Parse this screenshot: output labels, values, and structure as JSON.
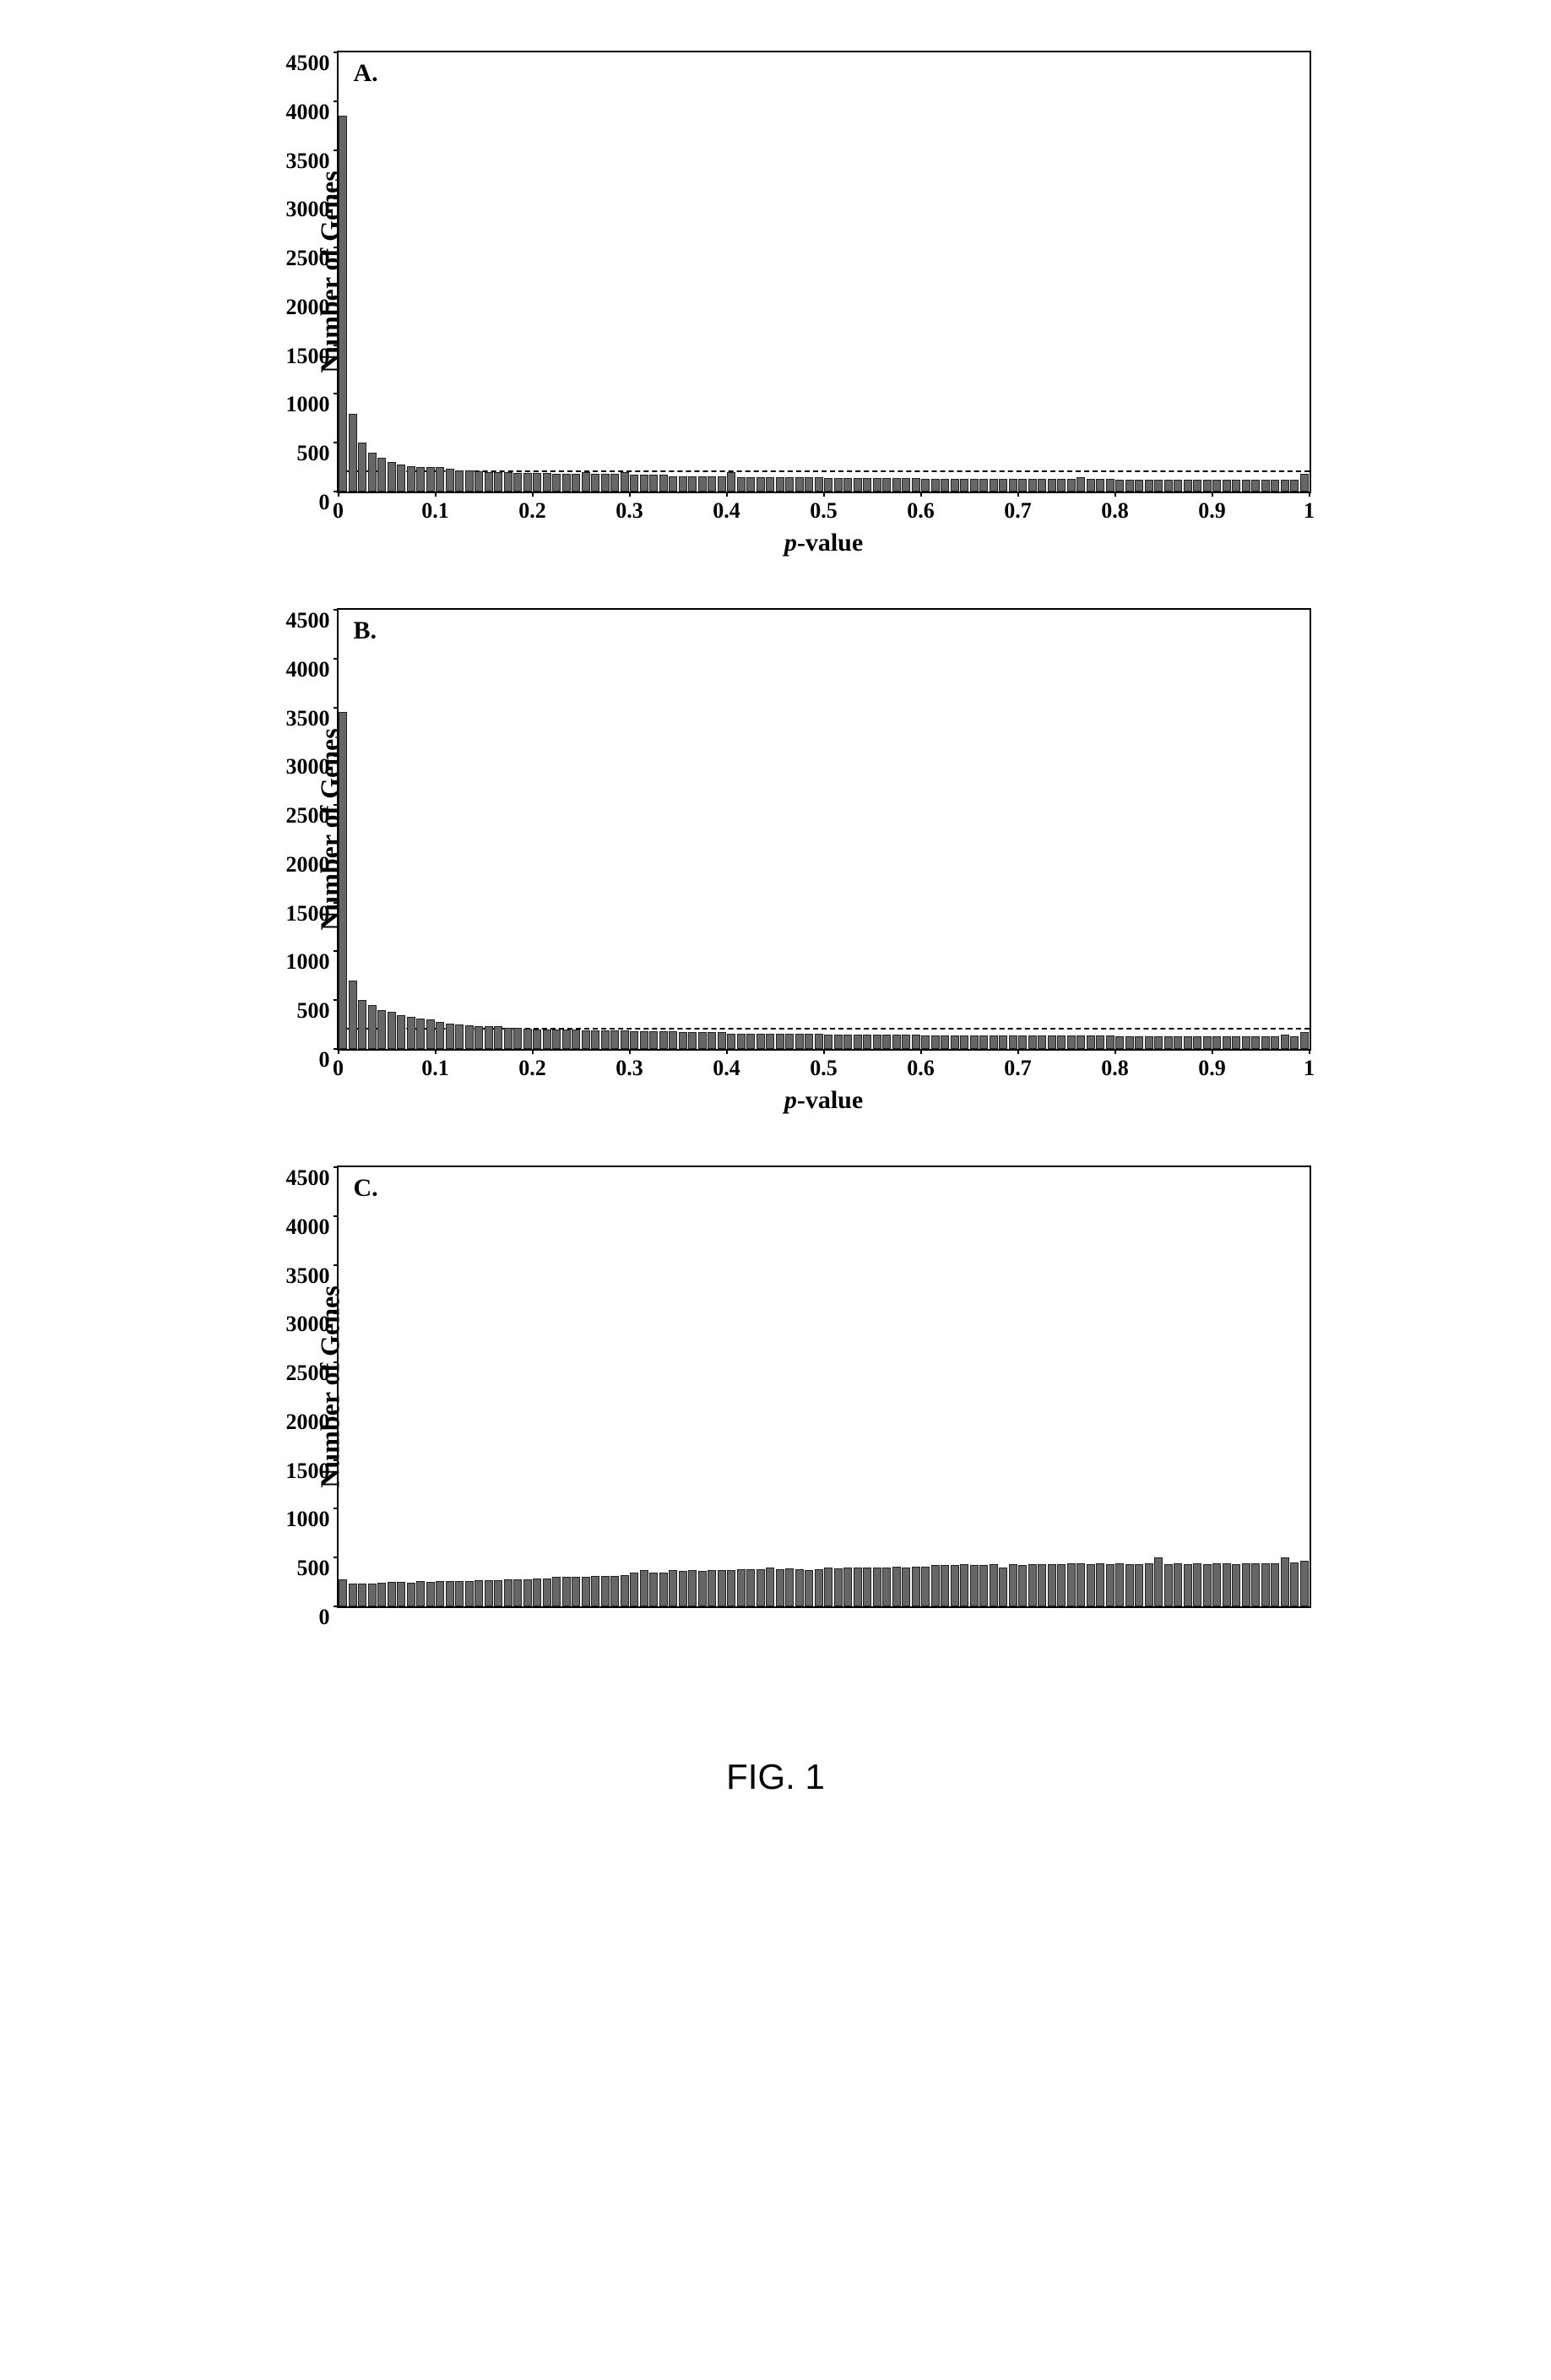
{
  "figure_caption": "FIG. 1",
  "global": {
    "background_color": "#ffffff",
    "bar_fill": "#666666",
    "bar_border": "#222222",
    "axis_color": "#000000",
    "ref_line_color": "#000000",
    "font_family": "Times New Roman",
    "y_label_fontsize": 32,
    "x_label_fontsize": 30,
    "panel_label_fontsize": 30,
    "tick_fontsize": 26
  },
  "panels": [
    {
      "id": "A",
      "panel_label": "A.",
      "y_label": "Number of Genes",
      "x_label": "p-value",
      "show_x_label": true,
      "ylim": [
        0,
        4500
      ],
      "yticks": [
        0,
        500,
        1000,
        1500,
        2000,
        2500,
        3000,
        3500,
        4000,
        4500
      ],
      "xlim": [
        0,
        1
      ],
      "xticks": [
        0,
        0.1,
        0.2,
        0.3,
        0.4,
        0.5,
        0.6,
        0.7,
        0.8,
        0.9,
        1
      ],
      "ref_line_y": 200,
      "bars": [
        3850,
        800,
        500,
        400,
        350,
        300,
        280,
        260,
        250,
        250,
        250,
        230,
        220,
        220,
        210,
        200,
        200,
        200,
        190,
        190,
        190,
        190,
        180,
        180,
        180,
        200,
        180,
        180,
        180,
        200,
        170,
        170,
        170,
        170,
        160,
        160,
        160,
        160,
        160,
        160,
        200,
        150,
        150,
        150,
        150,
        150,
        150,
        150,
        150,
        150,
        140,
        140,
        140,
        140,
        140,
        140,
        140,
        140,
        140,
        140,
        130,
        130,
        130,
        130,
        130,
        130,
        130,
        130,
        130,
        130,
        130,
        130,
        130,
        130,
        130,
        130,
        150,
        130,
        130,
        130,
        120,
        120,
        120,
        120,
        120,
        120,
        120,
        120,
        120,
        120,
        120,
        120,
        120,
        120,
        120,
        120,
        120,
        120,
        120,
        180
      ]
    },
    {
      "id": "B",
      "panel_label": "B.",
      "y_label": "Number of Genes",
      "x_label": "p-value",
      "show_x_label": true,
      "ylim": [
        0,
        4500
      ],
      "yticks": [
        0,
        500,
        1000,
        1500,
        2000,
        2500,
        3000,
        3500,
        4000,
        4500
      ],
      "xlim": [
        0,
        1
      ],
      "xticks": [
        0,
        0.1,
        0.2,
        0.3,
        0.4,
        0.5,
        0.6,
        0.7,
        0.8,
        0.9,
        1
      ],
      "ref_line_y": 200,
      "bars": [
        3450,
        700,
        500,
        450,
        400,
        380,
        350,
        330,
        310,
        300,
        280,
        260,
        250,
        240,
        230,
        230,
        230,
        220,
        220,
        210,
        200,
        200,
        200,
        200,
        200,
        190,
        190,
        190,
        190,
        190,
        180,
        180,
        180,
        180,
        180,
        170,
        170,
        170,
        170,
        170,
        160,
        160,
        160,
        160,
        160,
        160,
        160,
        160,
        160,
        160,
        150,
        150,
        150,
        150,
        150,
        150,
        150,
        150,
        150,
        150,
        140,
        140,
        140,
        140,
        140,
        140,
        140,
        140,
        140,
        140,
        140,
        140,
        140,
        140,
        140,
        140,
        140,
        140,
        140,
        140,
        130,
        130,
        130,
        130,
        130,
        130,
        130,
        130,
        130,
        130,
        130,
        130,
        130,
        130,
        130,
        130,
        130,
        150,
        130,
        170
      ]
    },
    {
      "id": "C",
      "panel_label": "C.",
      "y_label": "Number of Genes",
      "x_label": "",
      "show_x_label": false,
      "ylim": [
        0,
        4500
      ],
      "yticks": [
        0,
        500,
        1000,
        1500,
        2000,
        2500,
        3000,
        3500,
        4000,
        4500
      ],
      "xlim": [
        0,
        1
      ],
      "xticks": [],
      "ref_line_y": null,
      "bars": [
        280,
        230,
        230,
        230,
        240,
        250,
        250,
        240,
        260,
        250,
        260,
        260,
        260,
        260,
        270,
        270,
        270,
        280,
        280,
        280,
        290,
        290,
        300,
        300,
        300,
        300,
        310,
        310,
        310,
        320,
        350,
        370,
        350,
        350,
        370,
        360,
        370,
        360,
        370,
        370,
        370,
        380,
        380,
        380,
        400,
        380,
        390,
        380,
        370,
        380,
        400,
        390,
        400,
        400,
        400,
        400,
        400,
        410,
        400,
        410,
        410,
        420,
        420,
        420,
        430,
        420,
        420,
        430,
        400,
        430,
        420,
        430,
        430,
        430,
        430,
        440,
        440,
        430,
        440,
        430,
        440,
        430,
        430,
        440,
        500,
        430,
        440,
        430,
        440,
        430,
        440,
        440,
        430,
        440,
        440,
        440,
        440,
        500,
        450,
        470
      ]
    }
  ]
}
